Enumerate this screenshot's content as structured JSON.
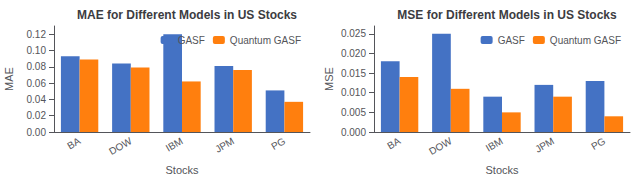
{
  "chart_data": [
    {
      "type": "bar",
      "title": "MAE for Different Models in US Stocks",
      "xlabel": "Stocks",
      "ylabel": "MAE",
      "categories": [
        "BA",
        "DOW",
        "IBM",
        "JPM",
        "PG"
      ],
      "series": [
        {
          "name": "GASF",
          "color": "#4472C4",
          "values": [
            0.093,
            0.084,
            0.12,
            0.081,
            0.051
          ]
        },
        {
          "name": "Quantum GASF",
          "color": "#FF7F0E",
          "values": [
            0.089,
            0.079,
            0.062,
            0.076,
            0.037
          ]
        }
      ],
      "ylim": [
        0,
        0.13
      ],
      "yticks": [
        {
          "value": 0,
          "label": "0.00"
        },
        0.02,
        0.04,
        0.06,
        0.08,
        {
          "value": 0.1,
          "label": "0.10"
        },
        0.12
      ],
      "grid": false,
      "legend": "upper right"
    },
    {
      "type": "bar",
      "title": "MSE for Different Models in US Stocks",
      "xlabel": "Stocks",
      "ylabel": "MSE",
      "categories": [
        "BA",
        "DOW",
        "IBM",
        "JPM",
        "PG"
      ],
      "series": [
        {
          "name": "GASF",
          "color": "#4472C4",
          "values": [
            0.018,
            0.025,
            0.009,
            0.012,
            0.013
          ]
        },
        {
          "name": "Quantum GASF",
          "color": "#FF7F0E",
          "values": [
            0.014,
            0.011,
            0.005,
            0.009,
            0.004
          ]
        }
      ],
      "ylim": [
        0,
        0.027
      ],
      "yticks": [
        {
          "value": 0,
          "label": "0.000"
        },
        0.005,
        {
          "value": 0.01,
          "label": "0.010"
        },
        0.015,
        {
          "value": 0.02,
          "label": "0.020"
        },
        0.025
      ],
      "grid": false,
      "legend": "upper right"
    }
  ]
}
